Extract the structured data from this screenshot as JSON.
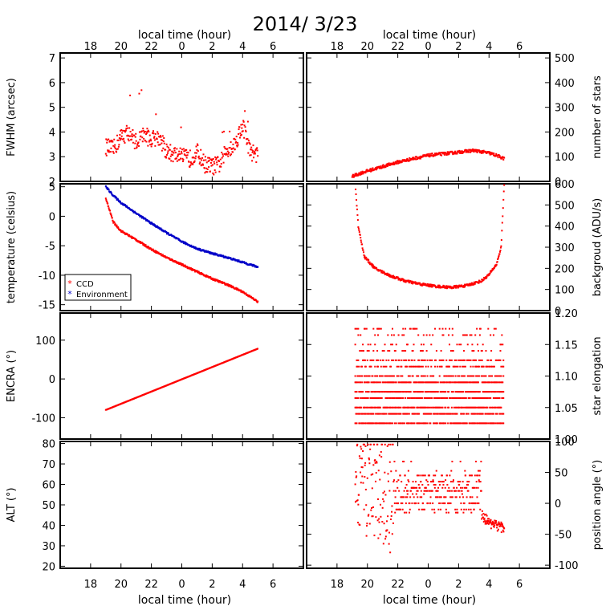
{
  "title": "2014/ 3/23",
  "time_axis_label": "local time (hour)",
  "time_ticks": [
    "18",
    "20",
    "22",
    "0",
    "2",
    "4",
    "6"
  ],
  "colors": {
    "ccd": "#ff0000",
    "environment": "#0000c8",
    "axes": "#000000"
  },
  "chart_data": [
    {
      "id": "fwhm",
      "type": "scatter",
      "xlabel": "local time (hour)",
      "ylabel": "FWHM (arcsec)",
      "ylim": [
        2,
        7.2
      ],
      "yticks": [
        2,
        3,
        4,
        5,
        6,
        7
      ],
      "xlim": [
        16,
        32
      ],
      "note": "x is hours after local midnight of previous day (24 = 0h)",
      "series": [
        {
          "color": "#ff0000",
          "x": [
            19,
            19.5,
            20,
            20.5,
            21,
            21.5,
            22,
            22.5,
            23,
            23.5,
            24,
            24.5,
            25,
            25.5,
            26,
            26.5,
            27,
            27.5,
            28,
            28.5,
            29
          ],
          "y": [
            3.4,
            3.3,
            3.8,
            4.0,
            3.6,
            3.9,
            3.7,
            3.8,
            3.2,
            3.1,
            3.0,
            2.9,
            3.2,
            2.7,
            2.6,
            2.7,
            3.3,
            3.5,
            4.3,
            3.2,
            3.1
          ]
        }
      ]
    },
    {
      "id": "stars",
      "type": "scatter",
      "xlabel": "local time (hour)",
      "ylabel": "number of stars",
      "ylim": [
        0,
        520
      ],
      "yticks": [
        0,
        100,
        200,
        300,
        400,
        500
      ],
      "xlim": [
        16,
        32
      ],
      "series": [
        {
          "color": "#ff0000",
          "x": [
            19,
            19.5,
            20,
            21,
            22,
            23,
            24,
            25,
            26,
            26.5,
            27,
            28,
            28.5,
            29
          ],
          "y": [
            20,
            32,
            42,
            60,
            78,
            92,
            105,
            112,
            118,
            122,
            125,
            115,
            105,
            92
          ]
        }
      ]
    },
    {
      "id": "temperature",
      "type": "line",
      "xlabel": "local time (hour)",
      "ylabel": "temperature (celsius)",
      "ylim": [
        -16,
        5.5
      ],
      "yticks": [
        -15,
        -10,
        -5,
        0,
        5
      ],
      "xlim": [
        16,
        32
      ],
      "legend": {
        "position": "bottom-left",
        "entries": [
          "CCD",
          "Environment"
        ]
      },
      "series": [
        {
          "name": "CCD",
          "color": "#ff0000",
          "x": [
            19,
            19.5,
            20,
            21,
            22,
            23,
            24,
            25,
            26,
            27,
            28,
            29
          ],
          "y": [
            3,
            -1,
            -2.5,
            -4,
            -5.6,
            -7,
            -8.2,
            -9.4,
            -10.6,
            -11.6,
            -12.8,
            -14.5
          ]
        },
        {
          "name": "Environment",
          "color": "#0000c8",
          "x": [
            19,
            19.5,
            20,
            21,
            22,
            23,
            24,
            25,
            26,
            27,
            28,
            29
          ],
          "y": [
            5,
            3.5,
            2.3,
            0.5,
            -1.2,
            -2.8,
            -4.3,
            -5.5,
            -6.3,
            -7,
            -7.8,
            -8.6
          ]
        }
      ]
    },
    {
      "id": "background",
      "type": "scatter",
      "xlabel": "local time (hour)",
      "ylabel": "backgroud (ADU/s)",
      "ylim": [
        0,
        600
      ],
      "yticks": [
        0,
        100,
        200,
        300,
        400,
        500,
        600
      ],
      "xlim": [
        16,
        32
      ],
      "series": [
        {
          "color": "#ff0000",
          "x": [
            19.2,
            19.4,
            19.8,
            20.5,
            21.5,
            22.5,
            23.5,
            24.5,
            25.5,
            26.5,
            27.5,
            28,
            28.5,
            28.8,
            29
          ],
          "y": [
            600,
            400,
            255,
            200,
            165,
            140,
            125,
            115,
            110,
            118,
            140,
            170,
            220,
            300,
            600
          ]
        }
      ]
    },
    {
      "id": "encra",
      "type": "line",
      "xlabel": "local time (hour)",
      "ylabel": "ENCRA (°)",
      "ylim": [
        -155,
        170
      ],
      "yticks": [
        -100,
        0,
        100
      ],
      "xlim": [
        16,
        32
      ],
      "series": [
        {
          "color": "#ff0000",
          "x": [
            19,
            29
          ],
          "y": [
            -80,
            78
          ]
        }
      ]
    },
    {
      "id": "elongation",
      "type": "scatter",
      "xlabel": "local time (hour)",
      "ylabel": "star elongation",
      "ylim": [
        1.0,
        1.2
      ],
      "yticks": [
        1.0,
        1.05,
        1.1,
        1.15,
        1.2
      ],
      "xlim": [
        16,
        32
      ],
      "levels": [
        1.025,
        1.04,
        1.05,
        1.065,
        1.075,
        1.09,
        1.1,
        1.115,
        1.125,
        1.14,
        1.15,
        1.165,
        1.175
      ],
      "series": [
        {
          "color": "#ff0000",
          "x_range": [
            19.2,
            29
          ]
        }
      ]
    },
    {
      "id": "alt",
      "type": "scatter",
      "xlabel": "local time (hour)",
      "ylabel": "ALT (°)",
      "ylim": [
        19,
        81
      ],
      "yticks": [
        20,
        30,
        40,
        50,
        60,
        70,
        80
      ],
      "xlim": [
        16,
        32
      ],
      "series": []
    },
    {
      "id": "position_angle",
      "type": "scatter",
      "xlabel": "local time (hour)",
      "ylabel": "position angle (°)",
      "ylim": [
        -105,
        100
      ],
      "yticks": [
        -100,
        -50,
        0,
        50,
        100
      ],
      "xlim": [
        16,
        32
      ],
      "series": [
        {
          "color": "#ff0000",
          "x": [
            19.3,
            20,
            20.8,
            21.6,
            22,
            23,
            24,
            25,
            26,
            27,
            27.5,
            28,
            28.5,
            29
          ],
          "y": [
            50,
            40,
            30,
            10,
            0,
            0,
            0,
            0,
            -5,
            -10,
            -20,
            -30,
            -35,
            -40
          ]
        }
      ]
    }
  ]
}
